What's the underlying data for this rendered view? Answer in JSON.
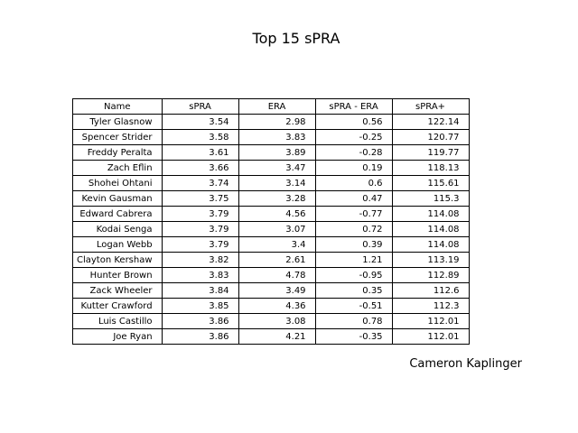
{
  "chart_data": {
    "type": "table",
    "title": "Top 15 sPRA",
    "columns": [
      "Name",
      "sPRA",
      "ERA",
      "sPRA - ERA",
      "sPRA+"
    ],
    "rows": [
      [
        "Tyler Glasnow",
        "3.54",
        "2.98",
        "0.56",
        "122.14"
      ],
      [
        "Spencer Strider",
        "3.58",
        "3.83",
        "-0.25",
        "120.77"
      ],
      [
        "Freddy Peralta",
        "3.61",
        "3.89",
        "-0.28",
        "119.77"
      ],
      [
        "Zach Eflin",
        "3.66",
        "3.47",
        "0.19",
        "118.13"
      ],
      [
        "Shohei Ohtani",
        "3.74",
        "3.14",
        "0.6",
        "115.61"
      ],
      [
        "Kevin Gausman",
        "3.75",
        "3.28",
        "0.47",
        "115.3"
      ],
      [
        "Edward Cabrera",
        "3.79",
        "4.56",
        "-0.77",
        "114.08"
      ],
      [
        "Kodai Senga",
        "3.79",
        "3.07",
        "0.72",
        "114.08"
      ],
      [
        "Logan Webb",
        "3.79",
        "3.4",
        "0.39",
        "114.08"
      ],
      [
        "Clayton Kershaw",
        "3.82",
        "2.61",
        "1.21",
        "113.19"
      ],
      [
        "Hunter Brown",
        "3.83",
        "4.78",
        "-0.95",
        "112.89"
      ],
      [
        "Zack Wheeler",
        "3.84",
        "3.49",
        "0.35",
        "112.6"
      ],
      [
        "Kutter Crawford",
        "3.85",
        "4.36",
        "-0.51",
        "112.3"
      ],
      [
        "Luis Castillo",
        "3.86",
        "3.08",
        "0.78",
        "112.01"
      ],
      [
        "Joe Ryan",
        "3.86",
        "4.21",
        "-0.35",
        "112.01"
      ]
    ]
  },
  "footer": {
    "author": "Cameron Kaplinger"
  }
}
